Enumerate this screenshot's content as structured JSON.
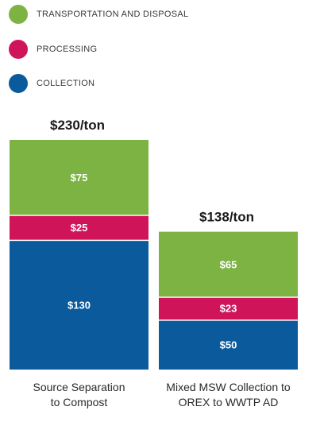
{
  "legend": {
    "items": [
      {
        "label": "TRANSPORTATION AND DISPOSAL",
        "color": "#7cb342"
      },
      {
        "label": "PROCESSING",
        "color": "#d0145a"
      },
      {
        "label": "COLLECTION",
        "color": "#0b5a9c"
      }
    ]
  },
  "chart_data": {
    "type": "bar",
    "stacked": true,
    "categories": [
      "Source Separation\nto Compost",
      "Mixed MSW Collection to\nOREX to WWTP AD"
    ],
    "totals": [
      "$230/ton",
      "$138/ton"
    ],
    "series": [
      {
        "name": "COLLECTION",
        "color": "#0b5a9c",
        "values": [
          130,
          50
        ],
        "labels": [
          "$130",
          "$50"
        ]
      },
      {
        "name": "PROCESSING",
        "color": "#d0145a",
        "values": [
          25,
          23
        ],
        "labels": [
          "$25",
          "$23"
        ]
      },
      {
        "name": "TRANSPORTATION AND DISPOSAL",
        "color": "#7cb342",
        "values": [
          75,
          65
        ],
        "labels": [
          "$75",
          "$65"
        ]
      }
    ],
    "ylim": [
      0,
      230
    ],
    "grid": false,
    "legend_position": "top-left"
  }
}
